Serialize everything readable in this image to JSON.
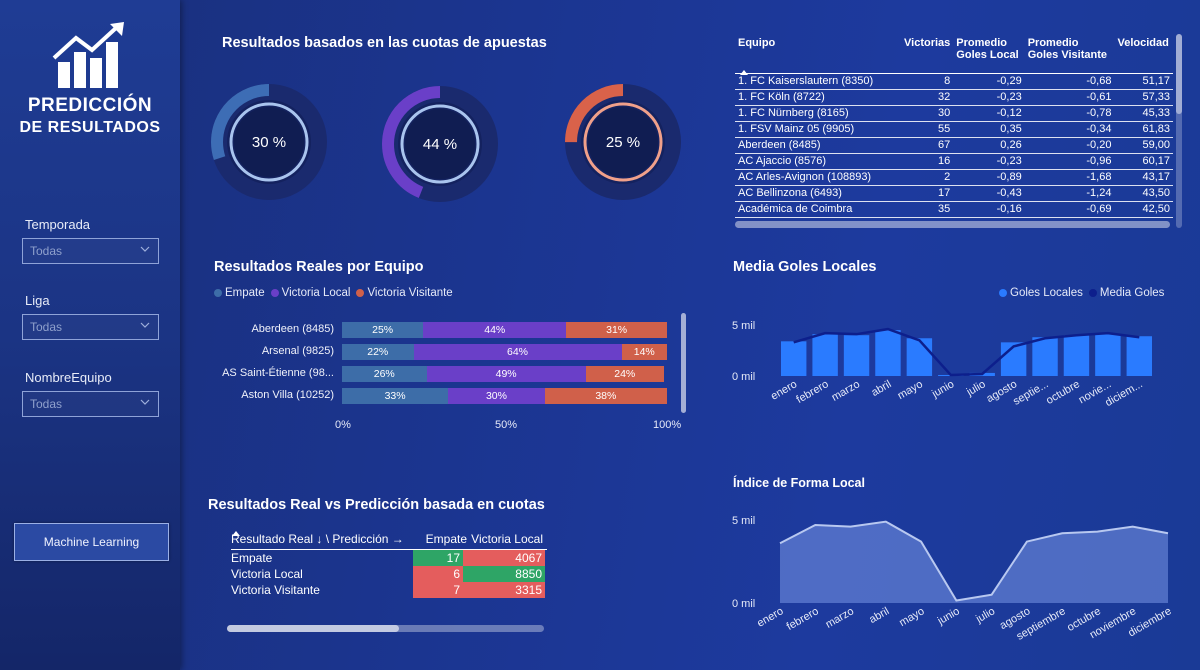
{
  "sidebar": {
    "title_line1": "PREDICCIÓN",
    "title_line2": "DE RESULTADOS",
    "filters": [
      {
        "label": "Temporada",
        "value": "Todas"
      },
      {
        "label": "Liga",
        "value": "Todas"
      },
      {
        "label": "NombreEquipo",
        "value": "Todas"
      }
    ],
    "ml_button": "Machine Learning"
  },
  "odds": {
    "title": "Resultados basados en las cuotas de apuestas",
    "donuts": [
      {
        "label": "30 %",
        "value": 30,
        "color": "#3d6db5"
      },
      {
        "label": "44 %",
        "value": 44,
        "color": "#6a3fc8"
      },
      {
        "label": "25 %",
        "value": 25,
        "color": "#d9624a"
      }
    ]
  },
  "teams_table": {
    "headers": {
      "equipo": "Equipo",
      "victorias": "Victorias",
      "local_1": "Promedio",
      "local_2": "Goles Local",
      "visit_1": "Promedio",
      "visit_2": "Goles Visitante",
      "velocidad": "Velocidad"
    },
    "rows": [
      {
        "equipo": "1. FC Kaiserslautern (8350)",
        "victorias": "8",
        "local": "-0,29",
        "visit": "-0,68",
        "vel": "51,17"
      },
      {
        "equipo": "1. FC Köln (8722)",
        "victorias": "32",
        "local": "-0,23",
        "visit": "-0,61",
        "vel": "57,33"
      },
      {
        "equipo": "1. FC Nürnberg (8165)",
        "victorias": "30",
        "local": "-0,12",
        "visit": "-0,78",
        "vel": "45,33"
      },
      {
        "equipo": "1. FSV Mainz 05 (9905)",
        "victorias": "55",
        "local": "0,35",
        "visit": "-0,34",
        "vel": "61,83"
      },
      {
        "equipo": "Aberdeen (8485)",
        "victorias": "67",
        "local": "0,26",
        "visit": "-0,20",
        "vel": "59,00"
      },
      {
        "equipo": "AC Ajaccio (8576)",
        "victorias": "16",
        "local": "-0,23",
        "visit": "-0,96",
        "vel": "60,17"
      },
      {
        "equipo": "AC Arles-Avignon (108893)",
        "victorias": "2",
        "local": "-0,89",
        "visit": "-1,68",
        "vel": "43,17"
      },
      {
        "equipo": "AC Bellinzona (6493)",
        "victorias": "17",
        "local": "-0,43",
        "visit": "-1,24",
        "vel": "43,50"
      },
      {
        "equipo": "Académica de Coimbra",
        "victorias": "35",
        "local": "-0,16",
        "visit": "-0,69",
        "vel": "42,50"
      }
    ]
  },
  "real_by_team": {
    "title": "Resultados Reales por Equipo",
    "legend": [
      {
        "name": "Empate",
        "color": "#3d6da8"
      },
      {
        "name": "Victoria Local",
        "color": "#6a3fc8"
      },
      {
        "name": "Victoria Visitante",
        "color": "#d0604a"
      }
    ],
    "axis": [
      "0%",
      "50%",
      "100%"
    ]
  },
  "goals_chart": {
    "title": "Media Goles Locales",
    "legend": [
      {
        "name": "Goles Locales",
        "color": "#2a7bff"
      },
      {
        "name": "Media Goles",
        "color": "#0d1f8c"
      }
    ],
    "y_labels": [
      "5 mil",
      "0 mil"
    ],
    "months": [
      "enero",
      "febrero",
      "marzo",
      "abril",
      "mayo",
      "junio",
      "julio",
      "agosto",
      "septie...",
      "octubre",
      "novie...",
      "diciem..."
    ]
  },
  "form_chart": {
    "title": "Índice de Forma Local",
    "y_labels": [
      "5 mil",
      "0 mil"
    ],
    "months": [
      "enero",
      "febrero",
      "marzo",
      "abril",
      "mayo",
      "junio",
      "julio",
      "agosto",
      "septiembre",
      "octubre",
      "noviembre",
      "diciembre"
    ]
  },
  "confusion": {
    "title": "Resultados Real vs Predicción basada en cuotas",
    "header_row": "Resultado Real ↓ \\ Predicción →",
    "col_empate": "Empate",
    "col_local": "Victoria Local",
    "rows": [
      {
        "label": "Empate",
        "empate": "17",
        "local": "4067"
      },
      {
        "label": "Victoria Local",
        "empate": "6",
        "local": "8850"
      },
      {
        "label": "Victoria Visitante",
        "empate": "7",
        "local": "3315"
      }
    ]
  },
  "chart_data": [
    {
      "type": "bar",
      "title": "Resultados Reales por Equipo",
      "stacked": "100%",
      "categories": [
        "Aberdeen (8485)",
        "Arsenal (9825)",
        "AS Saint-Étienne (98...",
        "Aston Villa (10252)"
      ],
      "series": [
        {
          "name": "Empate",
          "values": [
            25,
            22,
            26,
            33
          ],
          "labels": [
            "25%",
            "22%",
            "26%",
            "33%"
          ]
        },
        {
          "name": "Victoria Local",
          "values": [
            44,
            64,
            49,
            30
          ],
          "labels": [
            "44%",
            "64%",
            "49%",
            "30%"
          ]
        },
        {
          "name": "Victoria Visitante",
          "values": [
            31,
            14,
            24,
            38
          ],
          "labels": [
            "31%",
            "14%",
            "24%",
            "38%"
          ]
        }
      ],
      "xlim": [
        0,
        100
      ]
    },
    {
      "type": "bar",
      "title": "Media Goles Locales",
      "categories": [
        "enero",
        "febrero",
        "marzo",
        "abril",
        "mayo",
        "junio",
        "julio",
        "agosto",
        "septiembre",
        "octubre",
        "noviembre",
        "diciembre"
      ],
      "series": [
        {
          "name": "Goles Locales",
          "values": [
            3400,
            4100,
            4000,
            4500,
            3700,
            100,
            300,
            3300,
            3800,
            4000,
            4100,
            3900
          ]
        },
        {
          "name": "Media Goles",
          "values": [
            3300,
            4200,
            4100,
            4600,
            3500,
            100,
            200,
            2900,
            3700,
            4000,
            4200,
            3800
          ]
        }
      ],
      "ylim": [
        0,
        5000
      ]
    },
    {
      "type": "area",
      "title": "Índice de Forma Local",
      "categories": [
        "enero",
        "febrero",
        "marzo",
        "abril",
        "mayo",
        "junio",
        "julio",
        "agosto",
        "septiembre",
        "octubre",
        "noviembre",
        "diciembre"
      ],
      "series": [
        {
          "name": "",
          "values": [
            3600,
            4700,
            4600,
            4900,
            3700,
            150,
            500,
            3700,
            4200,
            4300,
            4600,
            4200
          ]
        }
      ],
      "ylim": [
        0,
        5000
      ]
    }
  ]
}
